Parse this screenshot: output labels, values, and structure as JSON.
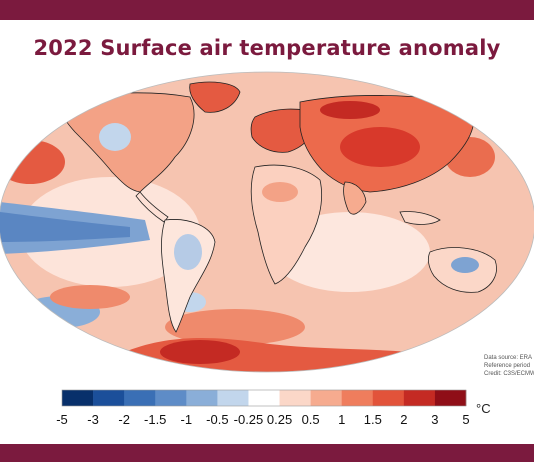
{
  "title": "2022 Surface air temperature anomaly",
  "credit_lines": [
    "Data source: ERA",
    "Reference period",
    "Credit: C3S/ECMW"
  ],
  "legend": {
    "unit": "°C",
    "tick_labels": [
      "-5",
      "-3",
      "-2",
      "-1.5",
      "-1",
      "-0.5",
      "-0.25",
      "0.25",
      "0.5",
      "1",
      "1.5",
      "2",
      "3",
      "5"
    ],
    "bins": [
      {
        "from": -5,
        "to": -3,
        "color": "#08306b"
      },
      {
        "from": -3,
        "to": -2,
        "color": "#1b4f9a"
      },
      {
        "from": -2,
        "to": -1.5,
        "color": "#3a6fb5"
      },
      {
        "from": -1.5,
        "to": -1,
        "color": "#5e8cc7"
      },
      {
        "from": -1,
        "to": -0.5,
        "color": "#8aaed8"
      },
      {
        "from": -0.5,
        "to": -0.25,
        "color": "#c2d6ec"
      },
      {
        "from": -0.25,
        "to": 0.25,
        "color": "#ffffff"
      },
      {
        "from": 0.25,
        "to": 0.5,
        "color": "#fbd7c8"
      },
      {
        "from": 0.5,
        "to": 1,
        "color": "#f6ab8f"
      },
      {
        "from": 1,
        "to": 1.5,
        "color": "#ef7d5d"
      },
      {
        "from": 1.5,
        "to": 2,
        "color": "#e2533a"
      },
      {
        "from": 2,
        "to": 3,
        "color": "#c42a23"
      },
      {
        "from": 3,
        "to": 5,
        "color": "#8f0e17"
      }
    ]
  },
  "colors": {
    "brand": "#7b1a3e",
    "ocean_background": "#f4c0ac",
    "warm_strong": "#d8392b",
    "warm_mid": "#ef7d5d",
    "cool_mid": "#6f98cc",
    "cool_light": "#c2d6ec",
    "neutral": "#ffffff",
    "coastline": "#222222"
  }
}
